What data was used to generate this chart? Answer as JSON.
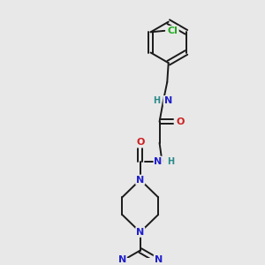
{
  "bg_color": "#e8e8e8",
  "bond_color": "#1a1a1a",
  "N_color": "#2020cc",
  "O_color": "#cc2020",
  "Cl_color": "#22aa22",
  "H_color": "#2a8a8a",
  "figsize": [
    3.0,
    3.0
  ],
  "dpi": 100,
  "xlim": [
    0,
    10
  ],
  "ylim": [
    0,
    10
  ]
}
